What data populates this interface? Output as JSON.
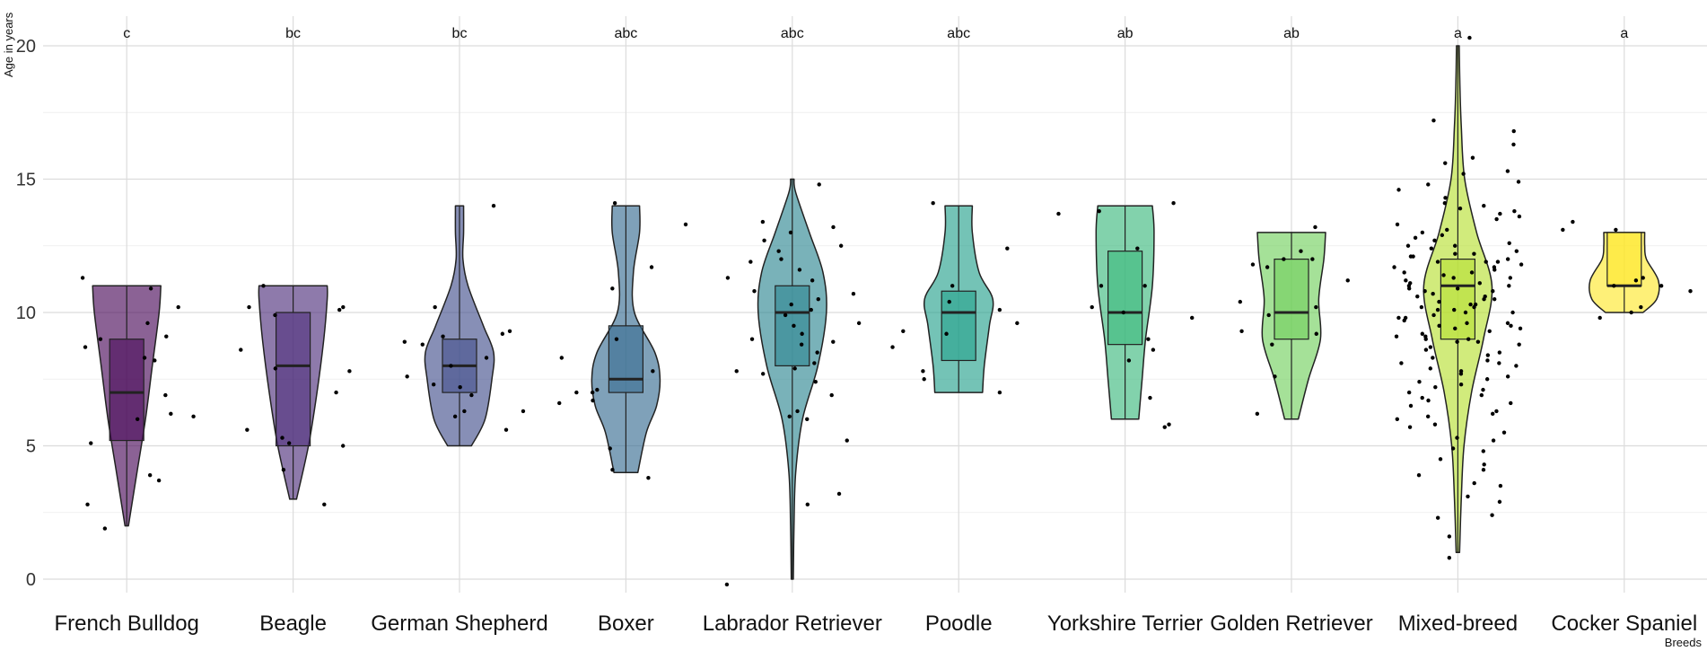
{
  "chart_data": {
    "type": "violin",
    "title": "",
    "xlabel": "Breeds",
    "ylabel": "Age in years",
    "ylim": [
      0,
      21
    ],
    "yticks": [
      0,
      5,
      10,
      15,
      20
    ],
    "grid": true,
    "colors": [
      "#440154",
      "#482878",
      "#3e4a89",
      "#31688e",
      "#26828e",
      "#1f9e89",
      "#35b779",
      "#6ece58",
      "#b5de2b",
      "#fde725"
    ],
    "categories": [
      "French Bulldog",
      "Beagle",
      "German Shepherd",
      "Boxer",
      "Labrador Retriever",
      "Poodle",
      "Yorkshire Terrier",
      "Golden Retriever",
      "Mixed-breed",
      "Cocker Spaniel"
    ],
    "letters": [
      "c",
      "bc",
      "bc",
      "abc",
      "abc",
      "abc",
      "ab",
      "ab",
      "a",
      "a"
    ],
    "stats": [
      {
        "min": 2,
        "q1": 5.2,
        "median": 7,
        "q3": 9,
        "max": 11
      },
      {
        "min": 3,
        "q1": 5,
        "median": 8,
        "q3": 10,
        "max": 11
      },
      {
        "min": 5,
        "q1": 7,
        "median": 8,
        "q3": 9,
        "max": 14
      },
      {
        "min": 4,
        "q1": 7,
        "median": 7.5,
        "q3": 9.5,
        "max": 14
      },
      {
        "min": 0,
        "q1": 8,
        "median": 10,
        "q3": 11,
        "max": 15
      },
      {
        "min": 7,
        "q1": 8.2,
        "median": 10,
        "q3": 10.8,
        "max": 14
      },
      {
        "min": 6,
        "q1": 8.8,
        "median": 10,
        "q3": 12.3,
        "max": 14
      },
      {
        "min": 6,
        "q1": 9,
        "median": 10,
        "q3": 12,
        "max": 13
      },
      {
        "min": 1,
        "q1": 9,
        "median": 11,
        "q3": 12,
        "max": 20
      },
      {
        "min": 10,
        "q1": 11,
        "median": 11,
        "q3": 13,
        "max": 13
      }
    ],
    "violin_profiles": [
      [
        [
          2,
          0.05
        ],
        [
          4,
          0.3
        ],
        [
          6,
          0.55
        ],
        [
          8,
          0.75
        ],
        [
          10,
          0.95
        ],
        [
          11,
          1
        ]
      ],
      [
        [
          3,
          0.1
        ],
        [
          5,
          0.45
        ],
        [
          7,
          0.7
        ],
        [
          9,
          0.9
        ],
        [
          10.5,
          1
        ],
        [
          11,
          1
        ]
      ],
      [
        [
          5,
          0.35
        ],
        [
          6,
          0.75
        ],
        [
          7.5,
          0.95
        ],
        [
          8.5,
          1
        ],
        [
          9.5,
          0.7
        ],
        [
          11,
          0.25
        ],
        [
          12,
          0.1
        ],
        [
          13,
          0.12
        ],
        [
          14,
          0.12
        ]
      ],
      [
        [
          4,
          0.35
        ],
        [
          5.5,
          0.6
        ],
        [
          6.5,
          0.9
        ],
        [
          7.5,
          1
        ],
        [
          8.5,
          0.85
        ],
        [
          10,
          0.25
        ],
        [
          11.5,
          0.22
        ],
        [
          13,
          0.4
        ],
        [
          14,
          0.4
        ]
      ],
      [
        [
          0,
          0.03
        ],
        [
          2,
          0.05
        ],
        [
          4,
          0.1
        ],
        [
          6,
          0.3
        ],
        [
          8,
          0.75
        ],
        [
          10,
          1
        ],
        [
          11.5,
          0.9
        ],
        [
          13,
          0.5
        ],
        [
          14.5,
          0.1
        ],
        [
          15,
          0.05
        ]
      ],
      [
        [
          7,
          0.7
        ],
        [
          8,
          0.75
        ],
        [
          9.5,
          0.9
        ],
        [
          10.5,
          1
        ],
        [
          11.5,
          0.6
        ],
        [
          13,
          0.4
        ],
        [
          14,
          0.4
        ]
      ],
      [
        [
          6,
          0.4
        ],
        [
          7.5,
          0.5
        ],
        [
          9,
          0.6
        ],
        [
          11,
          0.8
        ],
        [
          13,
          0.85
        ],
        [
          14,
          0.8
        ]
      ],
      [
        [
          6,
          0.2
        ],
        [
          7.5,
          0.5
        ],
        [
          9,
          0.85
        ],
        [
          10.5,
          0.8
        ],
        [
          12,
          0.95
        ],
        [
          13,
          1
        ]
      ],
      [
        [
          1,
          0.05
        ],
        [
          3,
          0.1
        ],
        [
          5,
          0.18
        ],
        [
          7,
          0.4
        ],
        [
          9,
          0.75
        ],
        [
          11,
          1
        ],
        [
          13,
          0.55
        ],
        [
          15,
          0.2
        ],
        [
          17,
          0.1
        ],
        [
          18.5,
          0.06
        ],
        [
          20,
          0.04
        ]
      ],
      [
        [
          10,
          0.55
        ],
        [
          10.5,
          0.95
        ],
        [
          11.2,
          1
        ],
        [
          12,
          0.65
        ],
        [
          12.5,
          0.6
        ],
        [
          13,
          0.6
        ]
      ]
    ],
    "points": [
      [
        9.6,
        9.0,
        8.3,
        6.1,
        10.9,
        3.9,
        11.3,
        10.2,
        8.2,
        6.2,
        3.7,
        1.9,
        9.1,
        8.7,
        6.0,
        5.1,
        2.8,
        6.9
      ],
      [
        10.2,
        10.1,
        8.6,
        5.1,
        2.8,
        9.9,
        11.0,
        7.9,
        7.8,
        5.0,
        5.3,
        4.1,
        7.0,
        10.2,
        5.6
      ],
      [
        10.2,
        9.1,
        7.2,
        6.3,
        6.1,
        14.0,
        8.8,
        8.0,
        9.3,
        9.2,
        7.3,
        6.3,
        5.6,
        8.3,
        7.6,
        6.9,
        8.9
      ],
      [
        11.7,
        10.9,
        7.8,
        6.7,
        4.9,
        4.1,
        14.1,
        13.3,
        9.0,
        8.3,
        7.0,
        7.0,
        3.8,
        6.6,
        7.1
      ],
      [
        13.4,
        12.0,
        10.8,
        8.9,
        6.1,
        6.3,
        3.2,
        2.8,
        14.8,
        11.3,
        11.6,
        9.9,
        9.5,
        8.1,
        12.7,
        13.0,
        10.7,
        9.0,
        7.9,
        5.2,
        6.0,
        -0.2,
        10.1,
        11.2,
        12.3,
        13.2,
        8.5,
        7.7,
        6.9,
        9.6,
        10.3,
        11.9,
        8.8,
        7.4,
        12.5,
        9.2,
        10.5,
        7.8
      ],
      [
        9.6,
        9.3,
        7.5,
        11.0,
        10.1,
        14.1,
        12.4,
        7.8,
        7.0,
        9.2,
        10.4,
        8.7
      ],
      [
        11.0,
        8.6,
        5.8,
        5.7,
        9.8,
        12.4,
        14.1,
        13.8,
        13.7,
        10.2,
        8.2,
        11.0,
        6.8,
        9.0,
        10.0
      ],
      [
        12.0,
        11.2,
        10.2,
        9.3,
        12.3,
        11.8,
        13.2,
        12.0,
        11.7,
        9.2,
        8.8,
        7.6,
        6.2,
        9.9,
        10.4
      ],
      [
        15.2,
        14.9,
        14.0,
        13.9,
        13.7,
        13.5,
        12.7,
        12.5,
        12.2,
        12.1,
        12.0,
        11.9,
        11.7,
        11.5,
        11.4,
        11.2,
        11.1,
        11.0,
        10.9,
        10.8,
        10.6,
        10.5,
        10.4,
        10.2,
        10.1,
        10.0,
        9.9,
        9.8,
        9.6,
        9.5,
        9.4,
        9.2,
        9.1,
        9.0,
        8.8,
        8.6,
        8.4,
        8.3,
        8.1,
        7.9,
        7.7,
        7.5,
        7.3,
        7.1,
        6.9,
        6.7,
        6.5,
        6.2,
        6.0,
        5.7,
        5.3,
        4.9,
        4.5,
        4.1,
        3.6,
        3.1,
        2.3,
        1.6,
        0.8,
        20.3,
        17.2,
        16.8,
        16.3,
        15.8,
        15.6,
        15.3,
        14.8,
        14.6,
        14.3,
        14.1,
        13.8,
        13.6,
        13.3,
        13.1,
        12.9,
        12.8,
        12.6,
        12.4,
        12.3,
        11.9,
        11.8,
        11.6,
        11.3,
        11.1,
        11.0,
        10.7,
        10.5,
        10.3,
        10.2,
        10.0,
        9.7,
        9.5,
        9.3,
        9.1,
        8.9,
        8.7,
        8.5,
        8.2,
        8.0,
        7.8,
        7.6,
        7.4,
        7.0,
        6.8,
        6.6,
        6.3,
        6.1,
        5.8,
        5.5,
        5.2,
        4.8,
        4.3,
        3.9,
        3.5,
        2.9,
        2.4,
        13.0,
        12.1,
        11.5,
        10.8,
        10.1,
        9.4,
        8.9,
        8.1,
        7.2,
        12.2,
        11.3,
        10.6,
        9.8,
        9.0,
        11.7,
        10.9,
        10.3,
        9.6,
        12.5,
        11.9
      ],
      [
        13.1,
        11.3,
        10.2,
        9.8,
        13.4,
        11.2,
        10.0,
        11.0,
        11.0,
        13.1,
        10.8
      ]
    ]
  }
}
